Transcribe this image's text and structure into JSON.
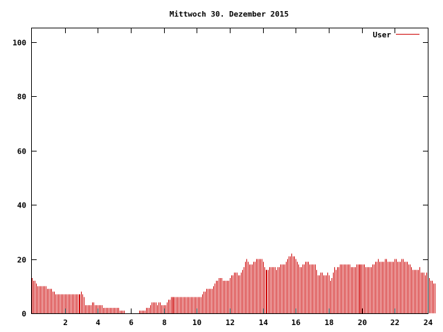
{
  "chart_data": {
    "type": "bar",
    "title": "Mittwoch 30. Dezember 2015",
    "xlabel": "",
    "ylabel": "",
    "xlim": [
      0,
      24
    ],
    "ylim": [
      0,
      105
    ],
    "xticks": [
      2,
      4,
      6,
      8,
      10,
      12,
      14,
      16,
      18,
      20,
      22,
      24
    ],
    "yticks": [
      0,
      20,
      40,
      60,
      80,
      100
    ],
    "grid": false,
    "legend_position": "top-right",
    "series": [
      {
        "name": "User",
        "color": "#cc0000",
        "x_start": 0,
        "x_step": 0.0833,
        "values": [
          13,
          12,
          12,
          11,
          10,
          10,
          10,
          10,
          10,
          10,
          10,
          9,
          9,
          9,
          9,
          8,
          8,
          7,
          7,
          7,
          7,
          7,
          7,
          7,
          7,
          7,
          7,
          7,
          7,
          7,
          7,
          7,
          7,
          7,
          7,
          7,
          8,
          7,
          6,
          3,
          3,
          3,
          3,
          3,
          4,
          4,
          3,
          3,
          3,
          3,
          3,
          3,
          2,
          2,
          2,
          2,
          2,
          2,
          2,
          2,
          2,
          2,
          2,
          2,
          1,
          1,
          1,
          1,
          0,
          0,
          0,
          0,
          0,
          0,
          0,
          0,
          0,
          0,
          1,
          1,
          1,
          1,
          1,
          2,
          2,
          2,
          3,
          4,
          4,
          4,
          4,
          3,
          4,
          4,
          3,
          3,
          3,
          3,
          4,
          5,
          5,
          6,
          6,
          6,
          6,
          6,
          6,
          6,
          6,
          6,
          6,
          6,
          6,
          6,
          6,
          6,
          6,
          6,
          6,
          6,
          6,
          6,
          6,
          6,
          7,
          8,
          8,
          9,
          9,
          9,
          9,
          9,
          10,
          11,
          12,
          12,
          13,
          13,
          13,
          12,
          12,
          12,
          12,
          12,
          13,
          14,
          14,
          15,
          15,
          15,
          14,
          14,
          15,
          16,
          17,
          19,
          20,
          19,
          18,
          18,
          18,
          19,
          19,
          20,
          20,
          20,
          20,
          20,
          19,
          17,
          16,
          16,
          16,
          17,
          17,
          17,
          17,
          17,
          16,
          17,
          17,
          18,
          18,
          18,
          18,
          19,
          20,
          21,
          21,
          22,
          21,
          21,
          20,
          19,
          18,
          17,
          17,
          18,
          18,
          19,
          19,
          19,
          18,
          18,
          18,
          18,
          18,
          16,
          14,
          14,
          15,
          15,
          14,
          14,
          14,
          15,
          14,
          12,
          13,
          15,
          17,
          16,
          17,
          17,
          18,
          18,
          18,
          18,
          18,
          18,
          18,
          18,
          17,
          17,
          17,
          17,
          18,
          18,
          18,
          18,
          18,
          18,
          18,
          17,
          17,
          17,
          17,
          17,
          18,
          18,
          19,
          19,
          20,
          19,
          19,
          19,
          19,
          20,
          20,
          19,
          19,
          19,
          19,
          19,
          20,
          20,
          19,
          19,
          19,
          20,
          20,
          19,
          19,
          19,
          18,
          18,
          17,
          16,
          16,
          16,
          16,
          16,
          17,
          15,
          15,
          15,
          14,
          15,
          14,
          13,
          12,
          12,
          11,
          11
        ]
      }
    ]
  }
}
